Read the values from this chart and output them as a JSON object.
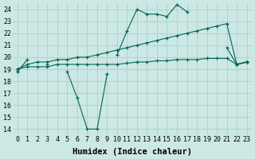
{
  "background_color": "#cce8e4",
  "grid_color": "#aad4d0",
  "line_color": "#006655",
  "xlabel": "Humidex (Indice chaleur)",
  "xlabel_fontsize": 7.5,
  "xlim": [
    -0.5,
    23.5
  ],
  "ylim": [
    13.5,
    24.5
  ],
  "yticks": [
    14,
    15,
    16,
    17,
    18,
    19,
    20,
    21,
    22,
    23,
    24
  ],
  "xticks": [
    0,
    1,
    2,
    3,
    4,
    5,
    6,
    7,
    8,
    9,
    10,
    11,
    12,
    13,
    14,
    15,
    16,
    17,
    18,
    19,
    20,
    21,
    22,
    23
  ],
  "series": [
    {
      "x": [
        0,
        1,
        2,
        3,
        4,
        5,
        6,
        7,
        8,
        9,
        10,
        11,
        12,
        13,
        14,
        15,
        16,
        17,
        18,
        19,
        20,
        21,
        22,
        23
      ],
      "y": [
        18.8,
        19.8,
        null,
        null,
        null,
        null,
        null,
        null,
        null,
        null,
        20.2,
        22.2,
        24.0,
        23.6,
        23.6,
        23.4,
        24.4,
        23.8,
        null,
        null,
        null,
        20.8,
        19.4,
        19.6
      ]
    },
    {
      "x": [
        0,
        1,
        2,
        3,
        4,
        5,
        6,
        7,
        8,
        9,
        10,
        11,
        12,
        13,
        14,
        15,
        16,
        17,
        18,
        19,
        20,
        21,
        22,
        23
      ],
      "y": [
        18.8,
        null,
        null,
        19.4,
        null,
        18.8,
        16.6,
        14.0,
        14.0,
        18.6,
        null,
        null,
        null,
        null,
        null,
        null,
        null,
        null,
        null,
        null,
        null,
        null,
        19.4,
        19.6
      ]
    },
    {
      "x": [
        0,
        1,
        2,
        3,
        4,
        5,
        6,
        7,
        8,
        9,
        10,
        11,
        12,
        13,
        14,
        15,
        16,
        17,
        18,
        19,
        20,
        21,
        22,
        23
      ],
      "y": [
        19.0,
        19.4,
        19.6,
        19.6,
        19.8,
        19.8,
        20.0,
        20.0,
        20.2,
        20.4,
        20.6,
        20.8,
        21.0,
        21.2,
        21.4,
        21.6,
        21.8,
        22.0,
        22.2,
        22.4,
        22.6,
        22.8,
        19.4,
        19.6
      ]
    },
    {
      "x": [
        0,
        1,
        2,
        3,
        4,
        5,
        6,
        7,
        8,
        9,
        10,
        11,
        12,
        13,
        14,
        15,
        16,
        17,
        18,
        19,
        20,
        21,
        22,
        23
      ],
      "y": [
        19.0,
        19.2,
        19.2,
        19.2,
        19.4,
        19.4,
        19.4,
        19.4,
        19.4,
        19.4,
        19.4,
        19.5,
        19.6,
        19.6,
        19.7,
        19.7,
        19.8,
        19.8,
        19.8,
        19.9,
        19.9,
        19.9,
        19.4,
        19.6
      ]
    }
  ]
}
